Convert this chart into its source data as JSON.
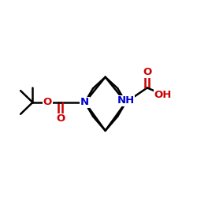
{
  "background_color": "#ffffff",
  "atom_colors": {
    "C": "#000000",
    "N": "#0000cc",
    "O": "#cc0000",
    "H": "#000000"
  },
  "bond_color": "#000000",
  "bond_width": 1.8,
  "figsize": [
    2.5,
    2.5
  ],
  "dpi": 100
}
